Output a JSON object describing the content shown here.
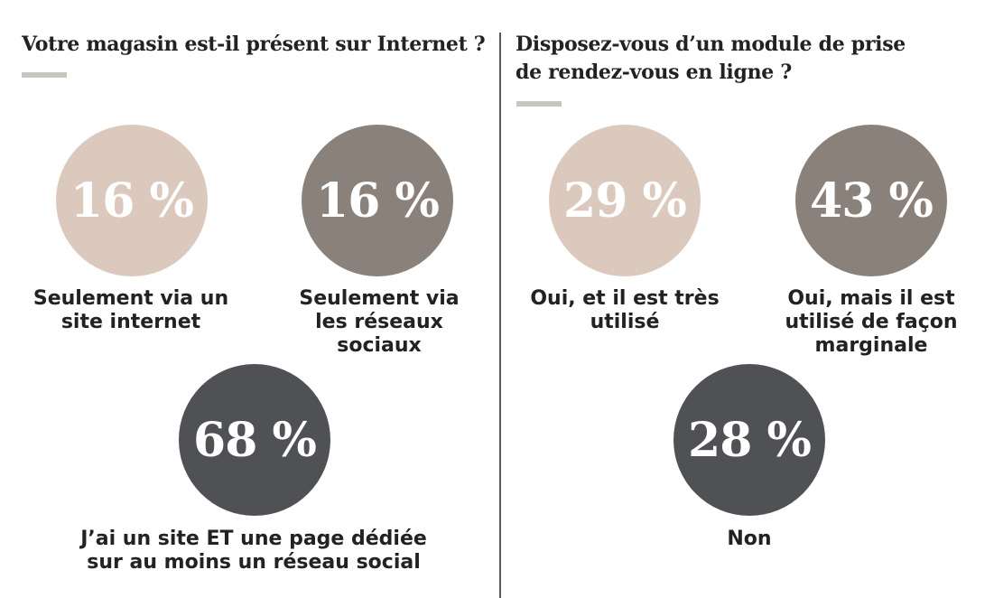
{
  "colors": {
    "light": "#dcc9bd",
    "medium": "#8b817b",
    "dark": "#4f5154",
    "underline": "#c9c6c0"
  },
  "chart_data": [
    {
      "type": "bubble-stat",
      "title": "Votre magasin est-il présent sur Internet ?",
      "unit": "%",
      "items": [
        {
          "label": "Seulement via un\nsite internet",
          "value": 16,
          "display": "16 %",
          "color": "#dcc9bd"
        },
        {
          "label": "Seulement via\nles réseaux\nsociaux",
          "value": 16,
          "display": "16 %",
          "color": "#8b817b"
        },
        {
          "label": "J’ai un site ET une page dédiée\nsur au moins un réseau social",
          "value": 68,
          "display": "68 %",
          "color": "#4f5154"
        }
      ]
    },
    {
      "type": "bubble-stat",
      "title": "Disposez-vous d’un module de prise\nde rendez-vous en ligne ?",
      "unit": "%",
      "items": [
        {
          "label": "Oui, et il est très\nutilisé",
          "value": 29,
          "display": "29 %",
          "color": "#dcc9bd"
        },
        {
          "label": "Oui, mais il est\nutilisé de façon\nmarginale",
          "value": 43,
          "display": "43 %",
          "color": "#8b817b"
        },
        {
          "label": "Non",
          "value": 28,
          "display": "28 %",
          "color": "#4f5154"
        }
      ]
    }
  ]
}
